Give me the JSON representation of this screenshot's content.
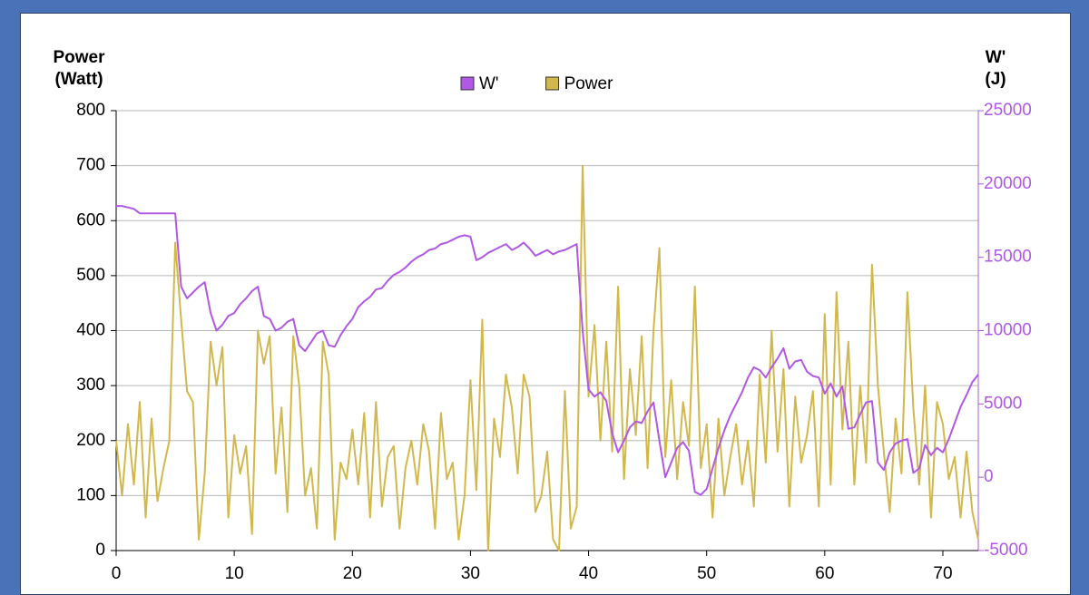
{
  "chart_data": {
    "type": "line",
    "y_label": "Power (Watt)",
    "y2_label": "W' (J)",
    "xlim": [
      0,
      73
    ],
    "xticks": [
      0,
      10,
      20,
      30,
      40,
      50,
      60,
      70
    ],
    "ylim": [
      0,
      800
    ],
    "yticks": [
      0,
      100,
      200,
      300,
      400,
      500,
      600,
      700,
      800
    ],
    "y2lim": [
      -5000,
      25000
    ],
    "y2ticks": [
      -5000,
      0,
      5000,
      10000,
      15000,
      20000,
      25000
    ],
    "grid": true,
    "x": [
      0,
      0.5,
      1,
      1.5,
      2,
      2.5,
      3,
      3.5,
      4,
      4.5,
      5,
      5.5,
      6,
      6.5,
      7,
      7.5,
      8,
      8.5,
      9,
      9.5,
      10,
      10.5,
      11,
      11.5,
      12,
      12.5,
      13,
      13.5,
      14,
      14.5,
      15,
      15.5,
      16,
      16.5,
      17,
      17.5,
      18,
      18.5,
      19,
      19.5,
      20,
      20.5,
      21,
      21.5,
      22,
      22.5,
      23,
      23.5,
      24,
      24.5,
      25,
      25.5,
      26,
      26.5,
      27,
      27.5,
      28,
      28.5,
      29,
      29.5,
      30,
      30.5,
      31,
      31.5,
      32,
      32.5,
      33,
      33.5,
      34,
      34.5,
      35,
      35.5,
      36,
      36.5,
      37,
      37.5,
      38,
      38.5,
      39,
      39.5,
      40,
      40.5,
      41,
      41.5,
      42,
      42.5,
      43,
      43.5,
      44,
      44.5,
      45,
      45.5,
      46,
      46.5,
      47,
      47.5,
      48,
      48.5,
      49,
      49.5,
      50,
      50.5,
      51,
      51.5,
      52,
      52.5,
      53,
      53.5,
      54,
      54.5,
      55,
      55.5,
      56,
      56.5,
      57,
      57.5,
      58,
      58.5,
      59,
      59.5,
      60,
      60.5,
      61,
      61.5,
      62,
      62.5,
      63,
      63.5,
      64,
      64.5,
      65,
      65.5,
      66,
      66.5,
      67,
      67.5,
      68,
      68.5,
      69,
      69.5,
      70,
      70.5,
      71,
      71.5,
      72,
      72.5,
      73
    ],
    "series": [
      {
        "name": "W'",
        "color": "#b158e6",
        "axis": "y2",
        "values": [
          18500,
          18500,
          18400,
          18300,
          18000,
          18000,
          18000,
          18000,
          18000,
          18000,
          18000,
          13000,
          12200,
          12600,
          13000,
          13300,
          11200,
          10000,
          10400,
          11000,
          11200,
          11800,
          12200,
          12700,
          13000,
          11000,
          10800,
          10000,
          10200,
          10600,
          10800,
          9000,
          8600,
          9200,
          9800,
          10000,
          9000,
          8900,
          9700,
          10300,
          10800,
          11600,
          12000,
          12300,
          12800,
          12900,
          13400,
          13800,
          14000,
          14300,
          14700,
          15000,
          15200,
          15500,
          15600,
          15900,
          16000,
          16200,
          16400,
          16500,
          16400,
          14800,
          15000,
          15300,
          15500,
          15700,
          15900,
          15500,
          15700,
          16000,
          15600,
          15100,
          15300,
          15500,
          15200,
          15400,
          15500,
          15700,
          15900,
          10000,
          6000,
          5500,
          5800,
          5200,
          3000,
          1700,
          2500,
          3400,
          3800,
          3700,
          4500,
          5100,
          2500,
          0,
          1000,
          2000,
          2400,
          1800,
          -1000,
          -1200,
          -800,
          600,
          2000,
          3200,
          4200,
          5000,
          5800,
          6800,
          7500,
          7300,
          6800,
          7500,
          8100,
          8800,
          7400,
          7900,
          8000,
          7200,
          6900,
          6800,
          5700,
          6400,
          5500,
          6200,
          3300,
          3400,
          4300,
          5100,
          5200,
          1000,
          500,
          1700,
          2300,
          2500,
          2600,
          300,
          600,
          2200,
          1500,
          2000,
          1700,
          2600,
          3700,
          4800,
          5600,
          6500,
          7000
        ]
      },
      {
        "name": "Power",
        "color": "#d2b84c",
        "values": [
          200,
          100,
          230,
          120,
          270,
          60,
          240,
          90,
          150,
          200,
          560,
          420,
          290,
          270,
          20,
          140,
          380,
          300,
          370,
          60,
          210,
          140,
          190,
          30,
          400,
          340,
          390,
          140,
          260,
          70,
          390,
          300,
          100,
          150,
          40,
          380,
          320,
          20,
          160,
          130,
          220,
          120,
          250,
          60,
          270,
          80,
          170,
          190,
          40,
          150,
          200,
          120,
          230,
          180,
          40,
          250,
          130,
          160,
          20,
          100,
          310,
          110,
          420,
          0,
          240,
          170,
          320,
          260,
          140,
          320,
          280,
          70,
          100,
          180,
          20,
          0,
          290,
          40,
          80,
          700,
          280,
          410,
          200,
          380,
          180,
          480,
          130,
          330,
          210,
          390,
          150,
          400,
          550,
          170,
          310,
          130,
          270,
          190,
          480,
          150,
          230,
          60,
          240,
          100,
          170,
          230,
          120,
          200,
          80,
          320,
          160,
          400,
          180,
          330,
          80,
          280,
          160,
          210,
          290,
          80,
          430,
          120,
          470,
          220,
          380,
          120,
          300,
          160,
          520,
          300,
          180,
          70,
          240,
          140,
          470,
          260,
          120,
          300,
          60,
          270,
          230,
          130,
          170,
          60,
          180,
          70,
          20
        ]
      }
    ]
  }
}
